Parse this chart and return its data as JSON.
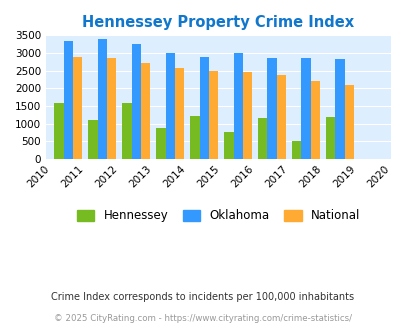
{
  "title": "Hennessey Property Crime Index",
  "all_years": [
    2010,
    2011,
    2012,
    2013,
    2014,
    2015,
    2016,
    2017,
    2018,
    2019,
    2020
  ],
  "bar_years": [
    2011,
    2012,
    2013,
    2014,
    2015,
    2016,
    2017,
    2018,
    2019
  ],
  "hennessey": [
    1575,
    1100,
    1600,
    875,
    1210,
    775,
    1165,
    500,
    1180
  ],
  "oklahoma": [
    3350,
    3390,
    3260,
    3000,
    2880,
    3000,
    2870,
    2870,
    2830
  ],
  "national": [
    2900,
    2850,
    2710,
    2590,
    2490,
    2470,
    2370,
    2200,
    2100
  ],
  "hennessey_color": "#77bb22",
  "oklahoma_color": "#3399ff",
  "national_color": "#ffaa33",
  "bg_color": "#ddeeff",
  "title_color": "#1177cc",
  "ylim": [
    0,
    3500
  ],
  "yticks": [
    0,
    500,
    1000,
    1500,
    2000,
    2500,
    3000,
    3500
  ],
  "legend_labels": [
    "Hennessey",
    "Oklahoma",
    "National"
  ],
  "footnote1": "Crime Index corresponds to incidents per 100,000 inhabitants",
  "footnote2": "© 2025 CityRating.com - https://www.cityrating.com/crime-statistics/",
  "bar_width": 0.27
}
